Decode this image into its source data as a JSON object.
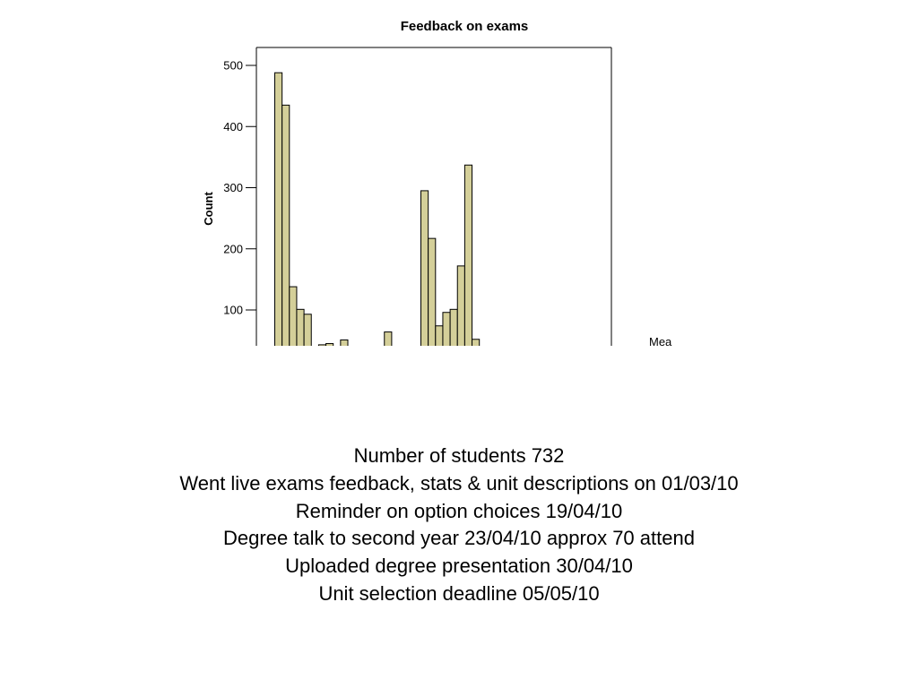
{
  "chart_data": {
    "type": "bar",
    "title": "Feedback on exams",
    "ylabel": "Count",
    "ylim": [
      0,
      520
    ],
    "yticks": [
      100,
      200,
      300,
      400,
      500
    ],
    "bar_color": "#d4cf99",
    "bar_stroke": "#000000",
    "values": [
      488,
      435,
      138,
      101,
      93,
      0,
      43,
      45,
      0,
      51,
      0,
      0,
      0,
      0,
      0,
      64,
      0,
      0,
      0,
      0,
      295,
      217,
      74,
      96,
      101,
      172,
      337,
      52
    ],
    "cut_off_label": "Mea"
  },
  "notes": [
    "Number of students 732",
    "Went live exams feedback, stats & unit descriptions on 01/03/10",
    "Reminder on option choices 19/04/10",
    "Degree talk to second year 23/04/10 approx 70 attend",
    "Uploaded degree presentation 30/04/10",
    "Unit selection deadline 05/05/10"
  ]
}
